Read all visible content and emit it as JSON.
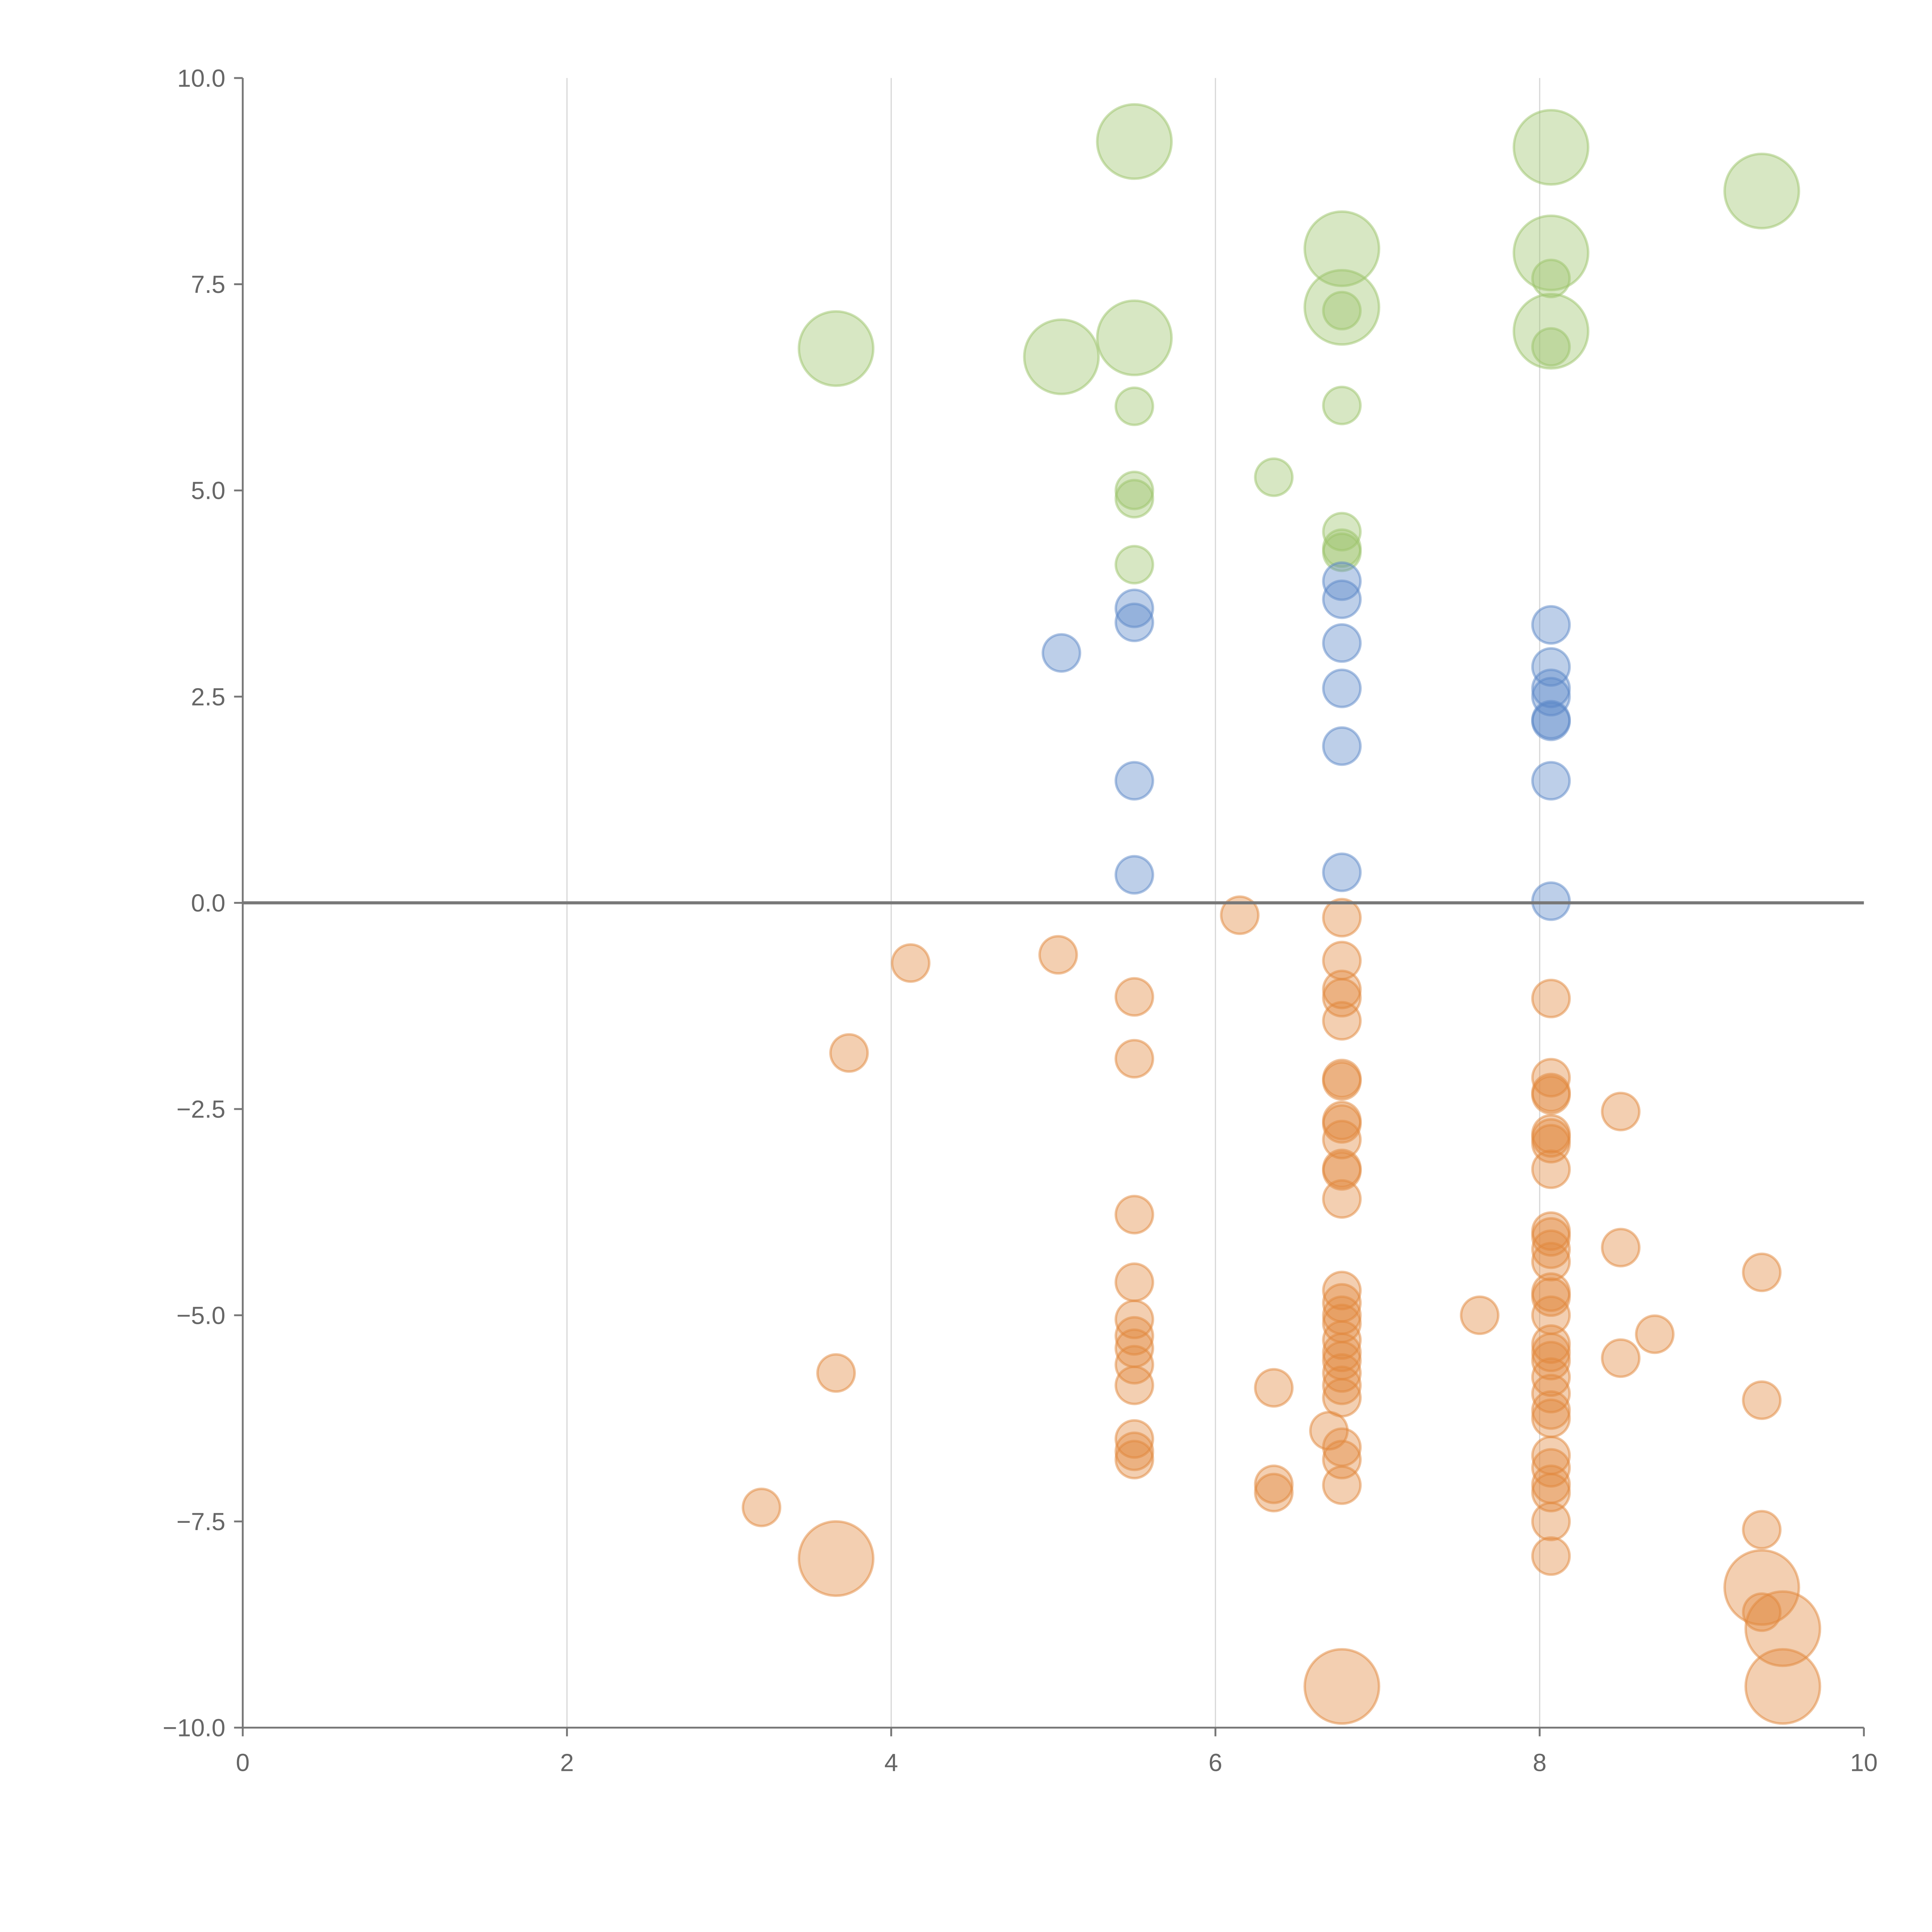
{
  "chart_data": {
    "type": "scatter",
    "title": "",
    "xlabel": "",
    "ylabel": "",
    "xlim": [
      0,
      10
    ],
    "ylim": [
      -10,
      10
    ],
    "grid": "vertical",
    "x_ticks": [
      "0",
      "2",
      "4",
      "6",
      "8",
      "10"
    ],
    "y_ticks": [
      "10.0",
      "7.5",
      "5.0",
      "2.5",
      "0.0",
      "−2.5",
      "−5.0",
      "−7.5",
      "−10.0"
    ],
    "colors": {
      "green": "#9cc46a",
      "blue": "#5b87c8",
      "orange": "#e2883c"
    },
    "series": [
      {
        "name": "green-large",
        "color": "green",
        "size": "large",
        "points": [
          [
            5.5,
            9.23
          ],
          [
            8.07,
            9.16
          ],
          [
            9.37,
            8.63
          ],
          [
            6.78,
            7.93
          ],
          [
            8.07,
            7.88
          ],
          [
            6.78,
            7.22
          ],
          [
            8.07,
            6.93
          ],
          [
            3.66,
            6.72
          ],
          [
            5.05,
            6.62
          ],
          [
            5.5,
            6.85
          ]
        ]
      },
      {
        "name": "green-small",
        "color": "green",
        "size": "small",
        "points": [
          [
            8.07,
            7.57
          ],
          [
            6.78,
            7.18
          ],
          [
            8.07,
            6.74
          ],
          [
            5.5,
            6.02
          ],
          [
            6.78,
            6.03
          ],
          [
            6.36,
            5.16
          ],
          [
            5.5,
            5.0
          ],
          [
            5.5,
            4.9
          ],
          [
            5.5,
            4.1
          ],
          [
            6.78,
            4.5
          ],
          [
            6.78,
            4.3
          ],
          [
            6.78,
            4.25
          ]
        ]
      },
      {
        "name": "blue",
        "color": "blue",
        "size": "small",
        "points": [
          [
            5.5,
            3.57
          ],
          [
            5.5,
            3.4
          ],
          [
            5.05,
            3.03
          ],
          [
            5.5,
            1.48
          ],
          [
            5.5,
            0.34
          ],
          [
            6.78,
            3.9
          ],
          [
            6.78,
            3.68
          ],
          [
            6.78,
            3.15
          ],
          [
            6.78,
            2.6
          ],
          [
            6.78,
            1.9
          ],
          [
            6.78,
            0.37
          ],
          [
            8.07,
            3.37
          ],
          [
            8.07,
            2.86
          ],
          [
            8.07,
            2.6
          ],
          [
            8.07,
            2.5
          ],
          [
            8.07,
            2.22
          ],
          [
            8.07,
            2.2
          ],
          [
            8.07,
            1.48
          ],
          [
            8.07,
            0.02
          ]
        ]
      },
      {
        "name": "orange-small",
        "color": "orange",
        "size": "small",
        "points": [
          [
            6.15,
            -0.15
          ],
          [
            4.12,
            -0.73
          ],
          [
            5.03,
            -0.63
          ],
          [
            3.74,
            -1.82
          ],
          [
            5.5,
            -1.14
          ],
          [
            5.5,
            -1.89
          ],
          [
            6.78,
            -0.18
          ],
          [
            6.78,
            -0.7
          ],
          [
            6.78,
            -1.05
          ],
          [
            6.78,
            -1.15
          ],
          [
            6.78,
            -1.43
          ],
          [
            6.78,
            -2.13
          ],
          [
            6.78,
            -2.16
          ],
          [
            6.78,
            -2.64
          ],
          [
            6.78,
            -2.68
          ],
          [
            6.78,
            -2.87
          ],
          [
            6.78,
            -3.22
          ],
          [
            6.78,
            -3.25
          ],
          [
            6.78,
            -3.59
          ],
          [
            8.07,
            -1.16
          ],
          [
            8.07,
            -2.12
          ],
          [
            8.07,
            -2.3
          ],
          [
            8.07,
            -2.33
          ],
          [
            8.07,
            -2.8
          ],
          [
            8.07,
            -2.85
          ],
          [
            8.07,
            -2.92
          ],
          [
            8.07,
            -3.23
          ],
          [
            8.5,
            -2.53
          ],
          [
            8.5,
            -4.18
          ],
          [
            5.5,
            -3.78
          ],
          [
            5.5,
            -4.6
          ],
          [
            5.5,
            -5.05
          ],
          [
            5.5,
            -5.25
          ],
          [
            5.5,
            -5.4
          ],
          [
            5.5,
            -5.6
          ],
          [
            5.5,
            -5.85
          ],
          [
            5.5,
            -6.5
          ],
          [
            5.5,
            -6.65
          ],
          [
            5.5,
            -6.75
          ],
          [
            6.36,
            -5.88
          ],
          [
            6.36,
            -7.05
          ],
          [
            6.36,
            -7.15
          ],
          [
            6.7,
            -6.4
          ],
          [
            6.78,
            -4.7
          ],
          [
            6.78,
            -4.85
          ],
          [
            6.78,
            -5.0
          ],
          [
            6.78,
            -5.1
          ],
          [
            6.78,
            -5.3
          ],
          [
            6.78,
            -5.45
          ],
          [
            6.78,
            -5.55
          ],
          [
            6.78,
            -5.7
          ],
          [
            6.78,
            -5.85
          ],
          [
            6.78,
            -6.0
          ],
          [
            6.78,
            -6.6
          ],
          [
            6.78,
            -6.75
          ],
          [
            6.78,
            -7.06
          ],
          [
            7.63,
            -5.0
          ],
          [
            8.07,
            -3.98
          ],
          [
            8.07,
            -4.05
          ],
          [
            8.07,
            -4.2
          ],
          [
            8.07,
            -4.35
          ],
          [
            8.07,
            -4.72
          ],
          [
            8.07,
            -4.78
          ],
          [
            8.07,
            -5.0
          ],
          [
            8.07,
            -5.35
          ],
          [
            8.07,
            -5.45
          ],
          [
            8.07,
            -5.55
          ],
          [
            8.07,
            -5.75
          ],
          [
            8.07,
            -5.95
          ],
          [
            8.07,
            -6.15
          ],
          [
            8.07,
            -6.25
          ],
          [
            8.07,
            -6.7
          ],
          [
            8.07,
            -6.85
          ],
          [
            8.07,
            -7.05
          ],
          [
            8.07,
            -7.15
          ],
          [
            8.07,
            -7.5
          ],
          [
            8.07,
            -7.92
          ],
          [
            8.5,
            -5.52
          ],
          [
            8.71,
            -5.23
          ],
          [
            9.37,
            -4.48
          ],
          [
            9.37,
            -6.03
          ],
          [
            3.2,
            -7.33
          ],
          [
            3.66,
            -5.7
          ],
          [
            9.37,
            -7.6
          ],
          [
            9.37,
            -8.6
          ]
        ]
      },
      {
        "name": "orange-large",
        "color": "orange",
        "size": "large",
        "points": [
          [
            3.66,
            -7.95
          ],
          [
            6.78,
            -9.5
          ],
          [
            9.37,
            -8.3
          ],
          [
            9.5,
            -8.8
          ],
          [
            9.5,
            -9.5
          ]
        ]
      }
    ]
  }
}
